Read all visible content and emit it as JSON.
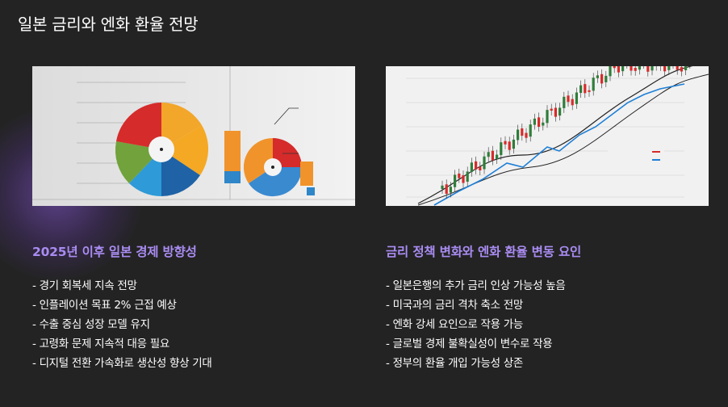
{
  "title": "일본 금리와 엔화 환율 전망",
  "sections": [
    {
      "heading": "2025년 이후 일본 경제 방향성",
      "items": [
        "- 경기 회복세 지속 전망",
        "- 인플레이션 목표 2% 근접 예상",
        "- 수출 중심 성장 모델 유지",
        "- 고령화 문제 지속적 대응 필요",
        "- 디지털 전환 가속화로 생산성 향상 기대"
      ]
    },
    {
      "heading": "금리 정책 변화와 엔화 환율 변동 요인",
      "items": [
        "- 일본은행의 추가 금리 인상 가능성 높음",
        "- 미국과의 금리 격차 축소 전망",
        "- 엔화 강세 요인으로 작용 가능",
        "- 글로벌 경제 불확실성이 변수로 작용",
        "- 정부의 환율 개입 가능성 상존"
      ]
    }
  ]
}
